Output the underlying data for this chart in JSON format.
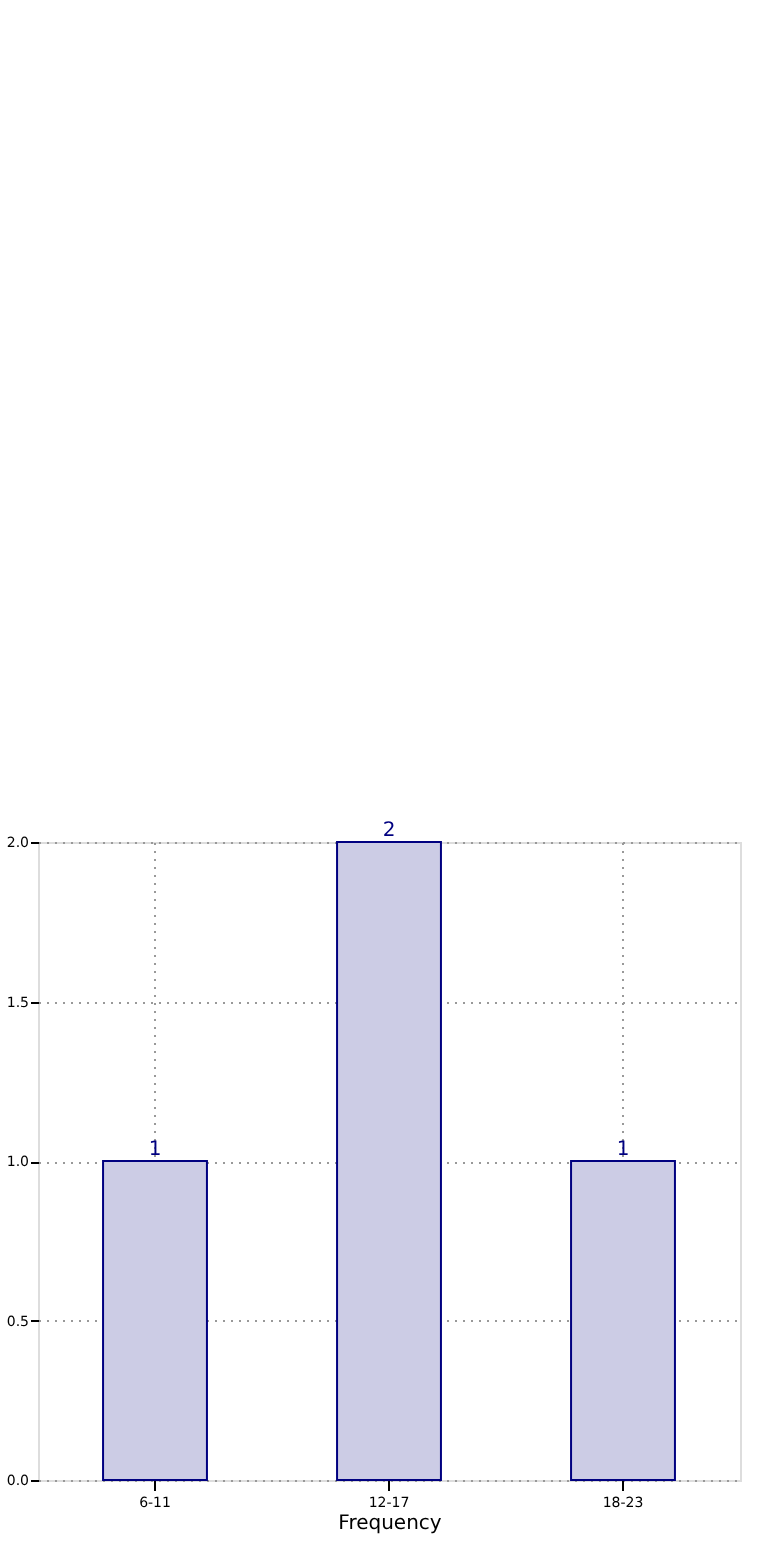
{
  "chart_data": {
    "type": "bar",
    "xlabel": "Frequency",
    "categories": [
      "6-11",
      "12-17",
      "18-23"
    ],
    "values": [
      1,
      2,
      1
    ],
    "color": "#ccccE5",
    "ylim": [
      0,
      2
    ],
    "yticks": [
      {
        "value": 0,
        "label": "0.0"
      },
      {
        "value": 0.5,
        "label": "0.5"
      },
      {
        "value": 1,
        "label": "1.0"
      },
      {
        "value": 1.5,
        "label": "1.5"
      },
      {
        "value": 2,
        "label": "2.0"
      }
    ],
    "grid": true,
    "data_labels": true
  }
}
